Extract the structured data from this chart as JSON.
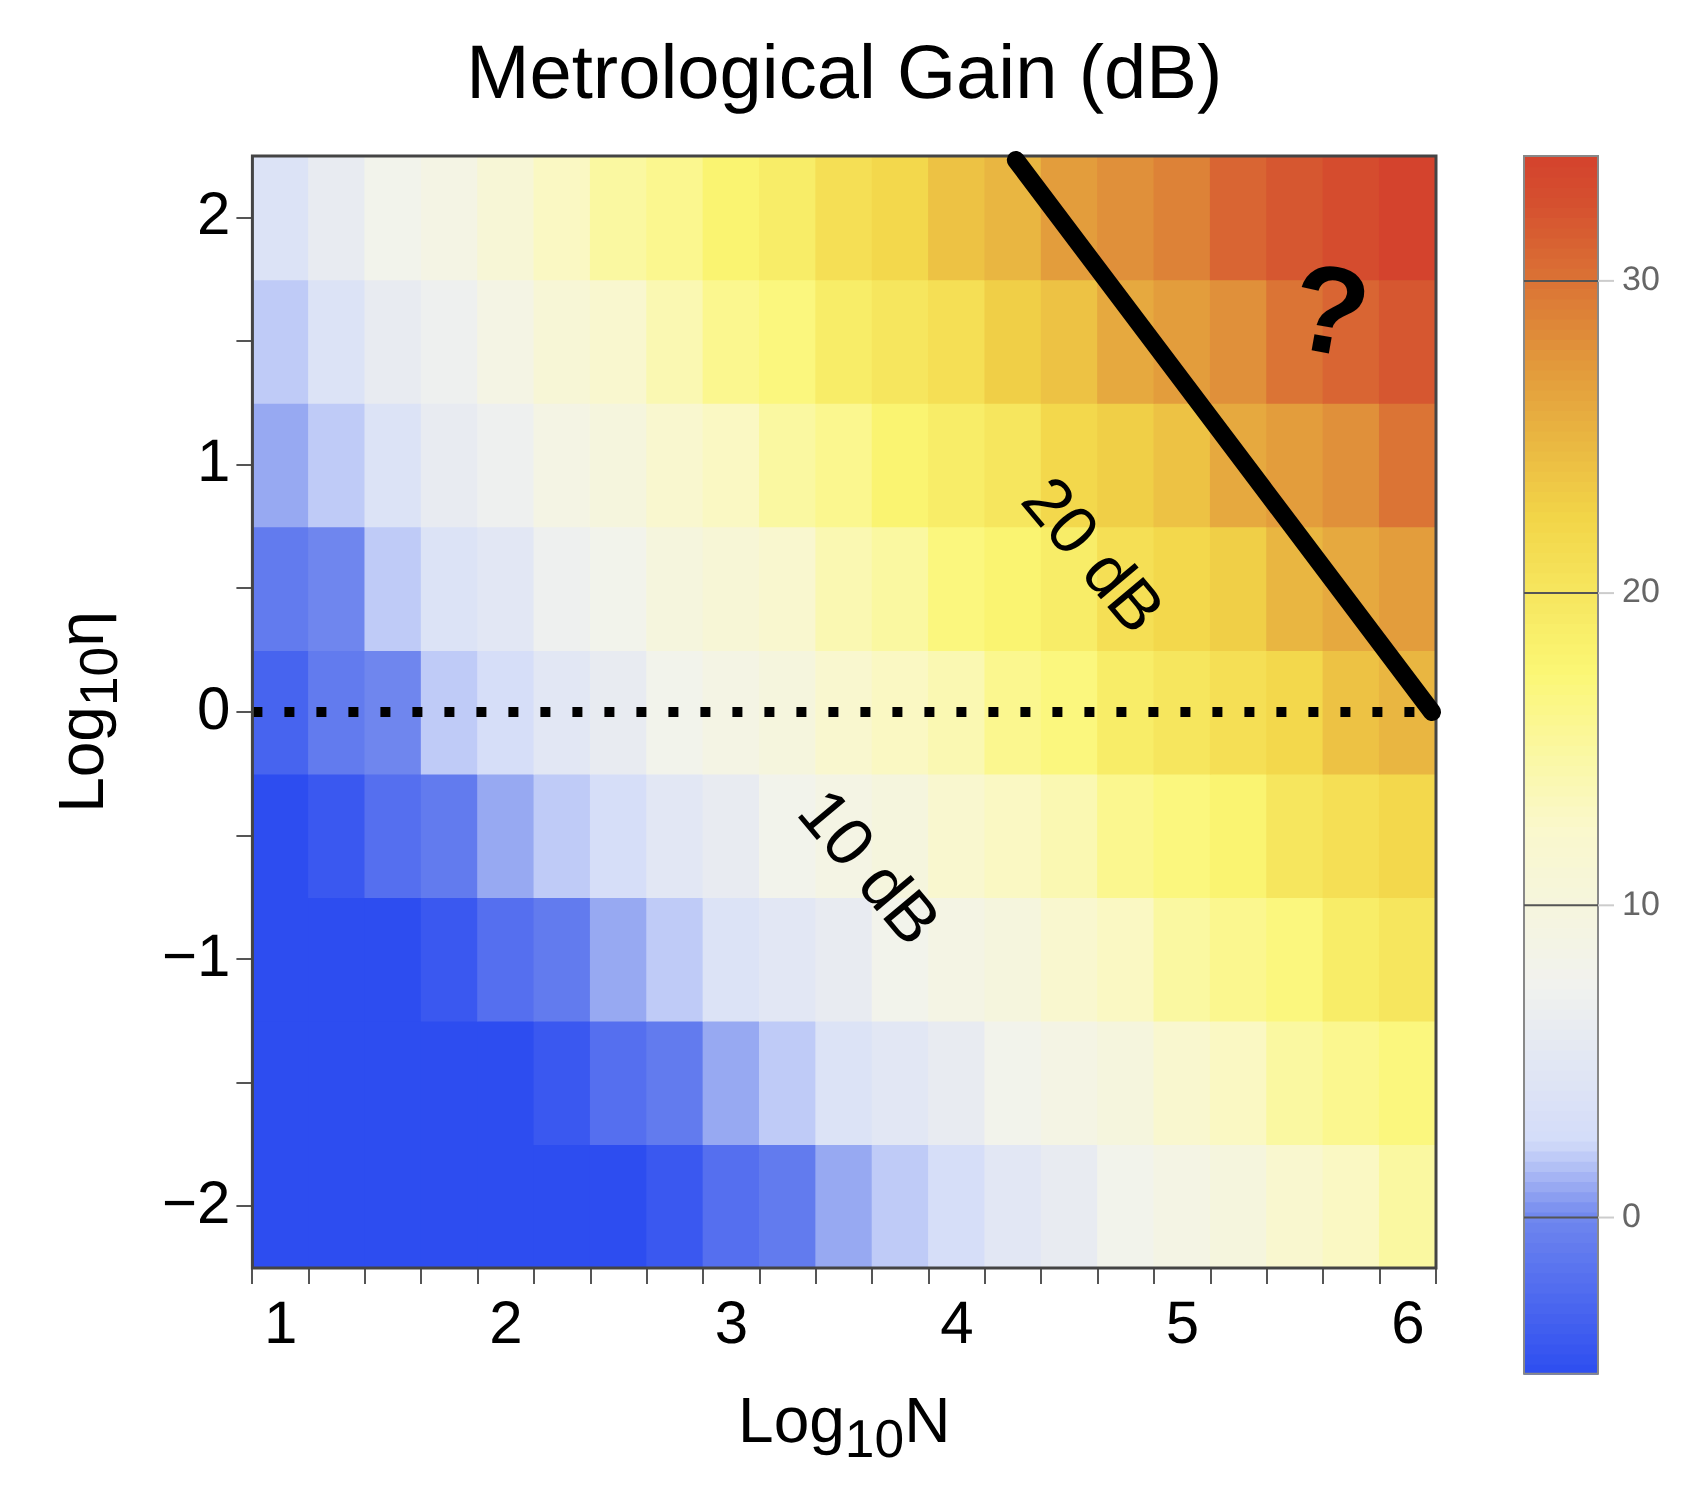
{
  "chart_data": {
    "type": "heatmap",
    "title": "Metrological Gain (dB)",
    "xlabel": "Log$_{10}$N",
    "ylabel": "Log$_{10}$η",
    "categories": [
      "1",
      null,
      null,
      null,
      "2",
      null,
      null,
      null,
      "3",
      null,
      null,
      null,
      "4",
      null,
      null,
      null,
      "5",
      null,
      null,
      null,
      "6"
    ],
    "y_categories": [
      "2",
      null,
      "1",
      null,
      "0",
      null,
      "−1",
      null,
      "−2"
    ],
    "cells": [
      [
        4,
        6,
        8,
        9,
        11,
        13,
        15,
        16,
        18,
        19,
        21,
        22,
        24,
        25,
        27,
        28,
        29,
        31,
        32,
        33,
        34
      ],
      [
        2,
        4,
        6,
        7,
        9,
        11,
        12,
        14,
        16,
        17,
        19,
        20,
        21,
        23,
        24,
        26,
        27,
        28,
        30,
        31,
        32
      ],
      [
        1,
        2,
        4,
        6,
        7,
        9,
        10,
        12,
        13,
        15,
        16,
        18,
        19,
        20,
        22,
        23,
        24,
        26,
        27,
        28,
        30
      ],
      [
        -1,
        0,
        2,
        4,
        5,
        7,
        8,
        10,
        11,
        12,
        14,
        15,
        17,
        18,
        19,
        21,
        22,
        23,
        25,
        26,
        27
      ],
      [
        -3,
        -1,
        0,
        2,
        3,
        5,
        6,
        8,
        9,
        10,
        12,
        13,
        14,
        16,
        17,
        19,
        20,
        21,
        22,
        24,
        25
      ],
      [
        -5,
        -4,
        -2,
        -1,
        1,
        2,
        3,
        5,
        6,
        8,
        9,
        10,
        12,
        13,
        14,
        16,
        17,
        18,
        20,
        21,
        22
      ],
      [
        -5,
        -5,
        -5,
        -4,
        -2,
        -1,
        1,
        2,
        4,
        5,
        6,
        8,
        9,
        10,
        12,
        13,
        15,
        16,
        17,
        19,
        20
      ],
      [
        -5,
        -5,
        -5,
        -5,
        -5,
        -4,
        -2,
        -1,
        1,
        2,
        4,
        5,
        6,
        8,
        9,
        10,
        12,
        13,
        15,
        16,
        17
      ],
      [
        -5,
        -5,
        -5,
        -5,
        -5,
        -5,
        -5,
        -4,
        -2,
        -1,
        1,
        2,
        3,
        5,
        6,
        8,
        9,
        10,
        12,
        13,
        15
      ]
    ],
    "clim": [
      -5,
      34
    ],
    "cticks": [
      0,
      10,
      20,
      30
    ],
    "ref_lines": [
      {
        "axis": "y",
        "value": "0",
        "line_style": "dotted",
        "color": "#000000"
      }
    ],
    "annotations": [
      "10 dB",
      "20 dB",
      "?"
    ]
  }
}
